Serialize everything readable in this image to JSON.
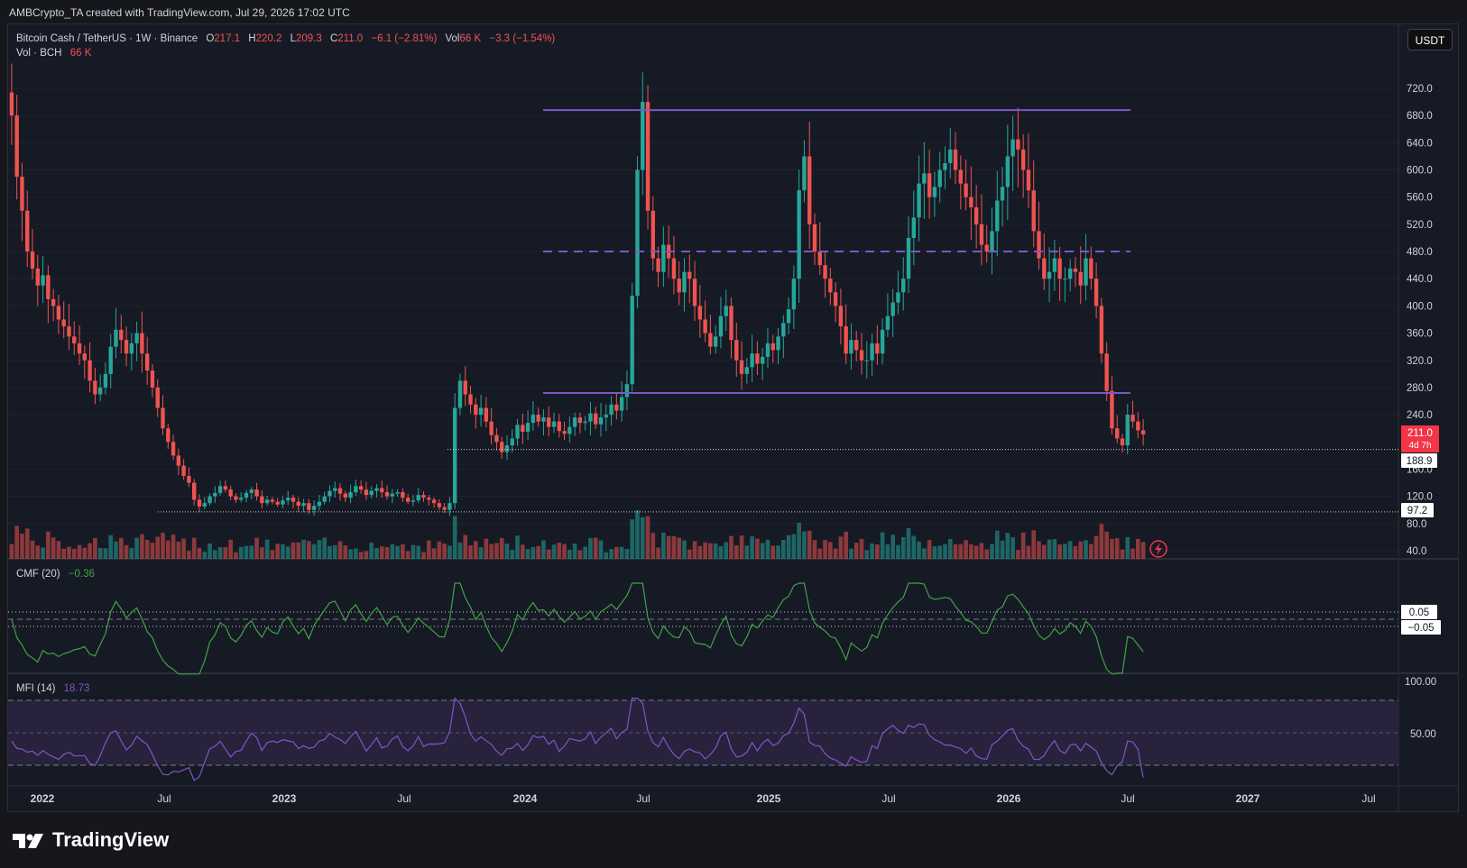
{
  "header": {
    "attribution": "AMBCrypto_TA created with TradingView.com, Jul 29, 2026 17:02 UTC"
  },
  "legend": {
    "symbol": "Bitcoin Cash / TetherUS · 1W · Binance",
    "o_label": "O",
    "o_value": "217.1",
    "h_label": "H",
    "h_value": "220.2",
    "l_label": "L",
    "l_value": "209.3",
    "c_label": "C",
    "c_value": "211.0",
    "change": "−6.1 (−2.81%)",
    "vol_label": "Vol",
    "vol_value": "66 K",
    "vol_change": "−3.3 (−1.54%)",
    "vol_row_label": "Vol · BCH",
    "vol_row_value": "66 K",
    "cmf_label": "CMF (20)",
    "cmf_value": "−0.36",
    "mfi_label": "MFI (14)",
    "mfi_value": "18.73"
  },
  "currency_button": "USDT",
  "price_axis": {
    "ticks": [
      "720.0",
      "680.0",
      "640.0",
      "600.0",
      "560.0",
      "520.0",
      "480.0",
      "440.0",
      "400.0",
      "360.0",
      "320.0",
      "280.0",
      "240.0",
      "160.0",
      "120.0",
      "80.0",
      "40.0"
    ],
    "current_price": "211.0",
    "countdown": "4d 7h",
    "line_188": "188.9",
    "line_97": "97.2"
  },
  "cmf_axis": {
    "upper": "0.05",
    "lower": "−0.05"
  },
  "mfi_axis": {
    "top": "100.00",
    "mid": "50.00"
  },
  "time_axis": [
    "2022",
    "Jul",
    "2023",
    "Jul",
    "2024",
    "Jul",
    "2025",
    "Jul",
    "2026",
    "Jul",
    "2027",
    "Jul"
  ],
  "brand": "TradingView",
  "colors": {
    "up": "#26a69a",
    "down": "#ef5350",
    "range_lines": "#7e57c2",
    "cmf_line": "#43a047",
    "mfi_line": "#7e57c2",
    "price_tag": "#f23645"
  },
  "chart_data": {
    "type": "candlestick",
    "interval": "1W",
    "x_range": [
      "2022-01",
      "2027-07"
    ],
    "price_range": [
      40,
      720
    ],
    "range_levels": {
      "top": 688,
      "mid": 480,
      "bottom": 272
    },
    "support_levels": [
      188.9,
      97.2
    ],
    "closes": [
      680,
      590,
      540,
      480,
      455,
      430,
      445,
      410,
      400,
      380,
      370,
      355,
      345,
      330,
      320,
      290,
      270,
      280,
      300,
      340,
      365,
      350,
      330,
      345,
      360,
      330,
      305,
      280,
      250,
      220,
      200,
      180,
      165,
      150,
      140,
      115,
      105,
      110,
      120,
      125,
      135,
      130,
      120,
      115,
      118,
      125,
      130,
      120,
      110,
      115,
      112,
      108,
      114,
      118,
      112,
      106,
      110,
      100,
      106,
      112,
      120,
      128,
      132,
      124,
      118,
      126,
      135,
      130,
      122,
      128,
      132,
      126,
      120,
      124,
      126,
      118,
      112,
      114,
      122,
      118,
      115,
      110,
      104,
      100,
      110,
      250,
      290,
      270,
      255,
      240,
      250,
      230,
      210,
      200,
      185,
      195,
      205,
      225,
      215,
      228,
      240,
      230,
      236,
      222,
      230,
      216,
      212,
      222,
      236,
      228,
      230,
      242,
      226,
      236,
      240,
      255,
      246,
      266,
      285,
      415,
      600,
      700,
      540,
      470,
      450,
      490,
      470,
      440,
      420,
      450,
      440,
      400,
      380,
      360,
      340,
      355,
      385,
      400,
      350,
      320,
      300,
      310,
      330,
      315,
      325,
      345,
      335,
      355,
      375,
      395,
      440,
      570,
      620,
      520,
      480,
      460,
      440,
      420,
      400,
      370,
      330,
      350,
      335,
      320,
      320,
      345,
      330,
      365,
      385,
      405,
      420,
      440,
      500,
      530,
      580,
      595,
      560,
      575,
      600,
      610,
      630,
      600,
      580,
      560,
      545,
      520,
      490,
      480,
      510,
      555,
      575,
      620,
      645,
      630,
      600,
      570,
      510,
      470,
      440,
      450,
      470,
      440,
      440,
      455,
      450,
      430,
      470,
      440,
      400,
      330,
      275,
      220,
      205,
      195,
      240,
      230,
      217,
      211
    ],
    "cmf_level_band": [
      0.05,
      -0.05
    ],
    "cmf_last": -0.36,
    "mfi_bands": [
      80,
      50,
      20
    ],
    "mfi_last": 18.73
  }
}
